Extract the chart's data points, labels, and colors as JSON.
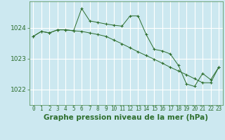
{
  "title": "Graphe pression niveau de la mer (hPa)",
  "background_color": "#cce8f0",
  "plot_bg_color": "#cce8f0",
  "grid_color": "#ffffff",
  "line_color": "#2d6e2d",
  "xlim": [
    -0.5,
    23.5
  ],
  "ylim": [
    1021.5,
    1024.85
  ],
  "yticks": [
    1022,
    1023,
    1024
  ],
  "xticks": [
    0,
    1,
    2,
    3,
    4,
    5,
    6,
    7,
    8,
    9,
    10,
    11,
    12,
    13,
    14,
    15,
    16,
    17,
    18,
    19,
    20,
    21,
    22,
    23
  ],
  "series1_x": [
    0,
    1,
    2,
    3,
    4,
    5,
    6,
    7,
    8,
    9,
    10,
    11,
    12,
    13,
    14,
    15,
    16,
    17,
    18,
    19,
    20,
    21,
    22,
    23
  ],
  "series1_y": [
    1023.72,
    1023.88,
    1023.83,
    1023.93,
    1023.93,
    1023.9,
    1024.62,
    1024.22,
    1024.17,
    1024.12,
    1024.08,
    1024.05,
    1024.38,
    1024.38,
    1023.78,
    1023.3,
    1023.25,
    1023.15,
    1022.78,
    1022.18,
    1022.1,
    1022.52,
    1022.32,
    1022.72
  ],
  "series2_x": [
    0,
    1,
    2,
    3,
    4,
    5,
    6,
    7,
    8,
    9,
    10,
    11,
    12,
    13,
    14,
    15,
    16,
    17,
    18,
    19,
    20,
    21,
    22,
    23
  ],
  "series2_y": [
    1023.72,
    1023.88,
    1023.83,
    1023.93,
    1023.93,
    1023.9,
    1023.88,
    1023.83,
    1023.78,
    1023.72,
    1023.6,
    1023.48,
    1023.35,
    1023.22,
    1023.1,
    1022.98,
    1022.85,
    1022.72,
    1022.6,
    1022.48,
    1022.35,
    1022.22,
    1022.22,
    1022.72
  ],
  "title_fontsize": 7.5,
  "tick_fontsize": 5.5
}
